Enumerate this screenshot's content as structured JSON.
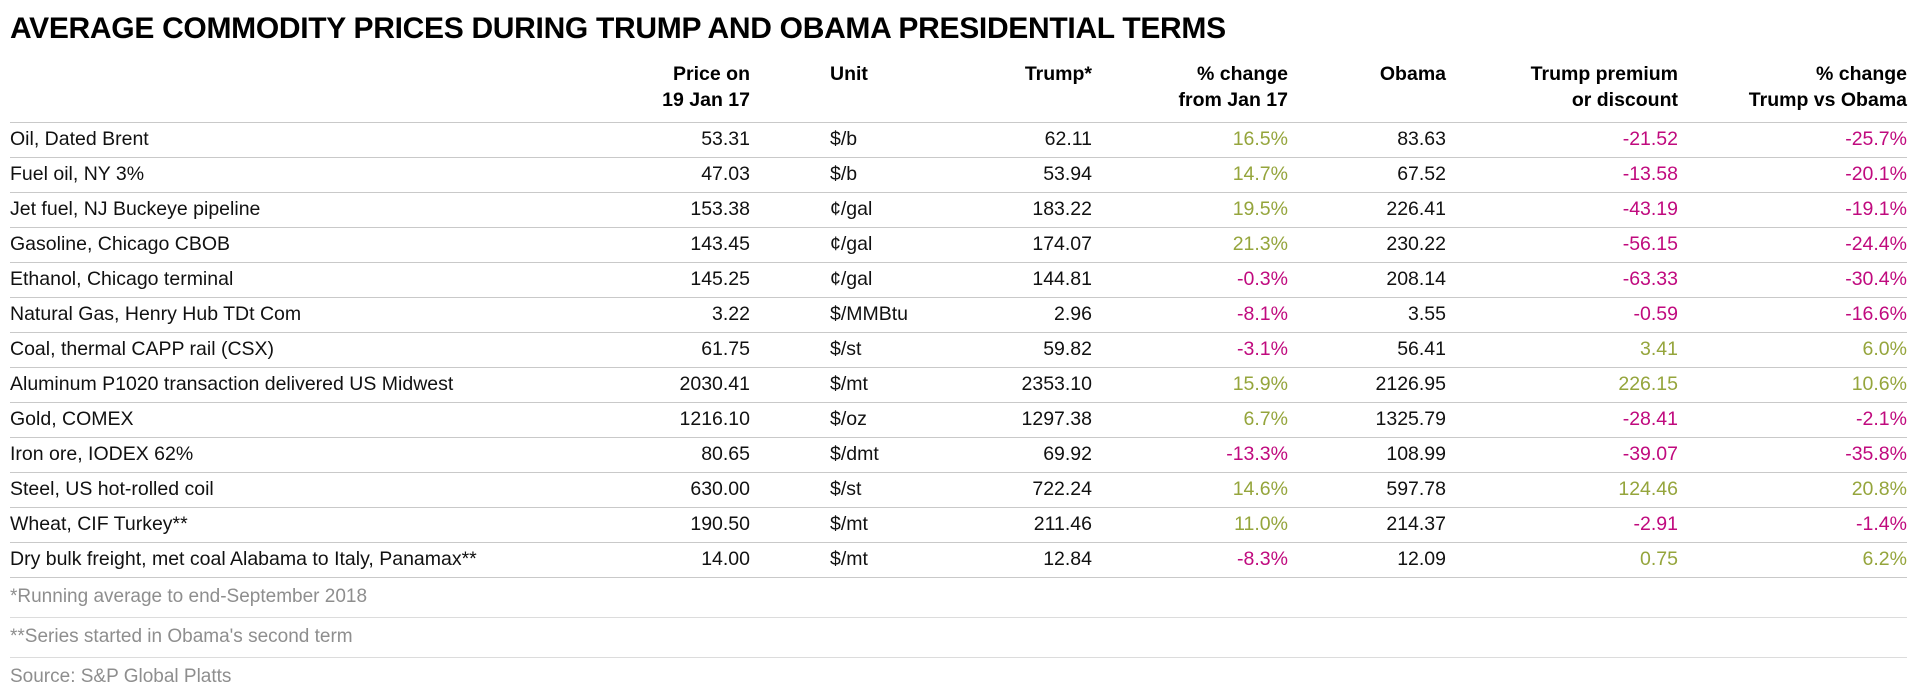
{
  "title": "AVERAGE COMMODITY PRICES DURING TRUMP AND OBAMA PRESIDENTIAL TERMS",
  "colors": {
    "positive": "#95a53c",
    "negative": "#c00a7e"
  },
  "chart_data": {
    "type": "table",
    "title": "AVERAGE COMMODITY PRICES DURING TRUMP AND OBAMA PRESIDENTIAL TERMS",
    "columns": [
      "Commodity",
      "Price on 19 Jan 17",
      "Unit",
      "Trump*",
      "% change from Jan 17",
      "Obama",
      "Trump premium or discount",
      "% change Trump vs Obama"
    ],
    "rows": [
      [
        "Oil, Dated Brent",
        53.31,
        "$/b",
        62.11,
        "16.5%",
        83.63,
        -21.52,
        "-25.7%"
      ],
      [
        "Fuel oil, NY 3%",
        47.03,
        "$/b",
        53.94,
        "14.7%",
        67.52,
        -13.58,
        "-20.1%"
      ],
      [
        "Jet fuel, NJ Buckeye pipeline",
        153.38,
        "¢/gal",
        183.22,
        "19.5%",
        226.41,
        -43.19,
        "-19.1%"
      ],
      [
        "Gasoline, Chicago CBOB",
        143.45,
        "¢/gal",
        174.07,
        "21.3%",
        230.22,
        -56.15,
        "-24.4%"
      ],
      [
        "Ethanol, Chicago terminal",
        145.25,
        "¢/gal",
        144.81,
        "-0.3%",
        208.14,
        -63.33,
        "-30.4%"
      ],
      [
        "Natural Gas, Henry Hub TDt Com",
        3.22,
        "$/MMBtu",
        2.96,
        "-8.1%",
        3.55,
        -0.59,
        "-16.6%"
      ],
      [
        "Coal, thermal CAPP rail (CSX)",
        61.75,
        "$/st",
        59.82,
        "-3.1%",
        56.41,
        3.41,
        "6.0%"
      ],
      [
        "Aluminum P1020 transaction delivered US Midwest",
        2030.41,
        "$/mt",
        2353.1,
        "15.9%",
        2126.95,
        226.15,
        "10.6%"
      ],
      [
        "Gold, COMEX",
        1216.1,
        "$/oz",
        1297.38,
        "6.7%",
        1325.79,
        -28.41,
        "-2.1%"
      ],
      [
        "Iron ore, IODEX 62%",
        80.65,
        "$/dmt",
        69.92,
        "-13.3%",
        108.99,
        -39.07,
        "-35.8%"
      ],
      [
        "Steel, US hot-rolled coil",
        630.0,
        "$/st",
        722.24,
        "14.6%",
        597.78,
        124.46,
        "20.8%"
      ],
      [
        "Wheat, CIF Turkey**",
        190.5,
        "$/mt",
        211.46,
        "11.0%",
        214.37,
        -2.91,
        "-1.4%"
      ],
      [
        "Dry bulk freight, met coal Alabama to Italy, Panamax**",
        14.0,
        "$/mt",
        12.84,
        "-8.3%",
        12.09,
        0.75,
        "6.2%"
      ]
    ]
  },
  "table": {
    "headers": {
      "price": {
        "line1": "Price on",
        "line2": "19 Jan 17"
      },
      "unit": {
        "line1": "Unit",
        "line2": ""
      },
      "trump": {
        "line1": "Trump*",
        "line2": ""
      },
      "chg_jan": {
        "line1": "% change",
        "line2": "from Jan 17"
      },
      "obama": {
        "line1": "Obama",
        "line2": ""
      },
      "premium": {
        "line1": "Trump premium",
        "line2": "or discount"
      },
      "chg_obama": {
        "line1": "% change",
        "line2": "Trump vs Obama"
      }
    },
    "rows": [
      {
        "name": "Oil, Dated Brent",
        "price": "53.31",
        "unit": "$/b",
        "trump": "62.11",
        "chg_jan": "16.5%",
        "obama": "83.63",
        "premium": "-21.52",
        "chg_obama": "-25.7%"
      },
      {
        "name": "Fuel oil, NY 3%",
        "price": "47.03",
        "unit": "$/b",
        "trump": "53.94",
        "chg_jan": "14.7%",
        "obama": "67.52",
        "premium": "-13.58",
        "chg_obama": "-20.1%"
      },
      {
        "name": "Jet fuel, NJ Buckeye pipeline",
        "price": "153.38",
        "unit": "¢/gal",
        "trump": "183.22",
        "chg_jan": "19.5%",
        "obama": "226.41",
        "premium": "-43.19",
        "chg_obama": "-19.1%"
      },
      {
        "name": "Gasoline, Chicago CBOB",
        "price": "143.45",
        "unit": "¢/gal",
        "trump": "174.07",
        "chg_jan": "21.3%",
        "obama": "230.22",
        "premium": "-56.15",
        "chg_obama": "-24.4%"
      },
      {
        "name": "Ethanol, Chicago terminal",
        "price": "145.25",
        "unit": "¢/gal",
        "trump": "144.81",
        "chg_jan": "-0.3%",
        "obama": "208.14",
        "premium": "-63.33",
        "chg_obama": "-30.4%"
      },
      {
        "name": "Natural Gas, Henry Hub TDt Com",
        "price": "3.22",
        "unit": "$/MMBtu",
        "trump": "2.96",
        "chg_jan": "-8.1%",
        "obama": "3.55",
        "premium": "-0.59",
        "chg_obama": "-16.6%"
      },
      {
        "name": "Coal, thermal CAPP rail (CSX)",
        "price": "61.75",
        "unit": "$/st",
        "trump": "59.82",
        "chg_jan": "-3.1%",
        "obama": "56.41",
        "premium": "3.41",
        "chg_obama": "6.0%"
      },
      {
        "name": "Aluminum P1020 transaction delivered US Midwest",
        "price": "2030.41",
        "unit": "$/mt",
        "trump": "2353.10",
        "chg_jan": "15.9%",
        "obama": "2126.95",
        "premium": "226.15",
        "chg_obama": "10.6%"
      },
      {
        "name": "Gold, COMEX",
        "price": "1216.10",
        "unit": "$/oz",
        "trump": "1297.38",
        "chg_jan": "6.7%",
        "obama": "1325.79",
        "premium": "-28.41",
        "chg_obama": "-2.1%"
      },
      {
        "name": "Iron ore, IODEX 62%",
        "price": "80.65",
        "unit": "$/dmt",
        "trump": "69.92",
        "chg_jan": "-13.3%",
        "obama": "108.99",
        "premium": "-39.07",
        "chg_obama": "-35.8%"
      },
      {
        "name": "Steel, US hot-rolled coil",
        "price": "630.00",
        "unit": "$/st",
        "trump": "722.24",
        "chg_jan": "14.6%",
        "obama": "597.78",
        "premium": "124.46",
        "chg_obama": "20.8%"
      },
      {
        "name": "Wheat, CIF Turkey**",
        "price": "190.50",
        "unit": "$/mt",
        "trump": "211.46",
        "chg_jan": "11.0%",
        "obama": "214.37",
        "premium": "-2.91",
        "chg_obama": "-1.4%"
      },
      {
        "name": "Dry bulk freight, met coal Alabama to Italy, Panamax**",
        "price": "14.00",
        "unit": "$/mt",
        "trump": "12.84",
        "chg_jan": "-8.3%",
        "obama": "12.09",
        "premium": "0.75",
        "chg_obama": "6.2%"
      }
    ]
  },
  "footnotes": [
    "*Running average to end-September 2018",
    "**Series started in Obama's second term",
    "Source: S&P Global Platts"
  ]
}
